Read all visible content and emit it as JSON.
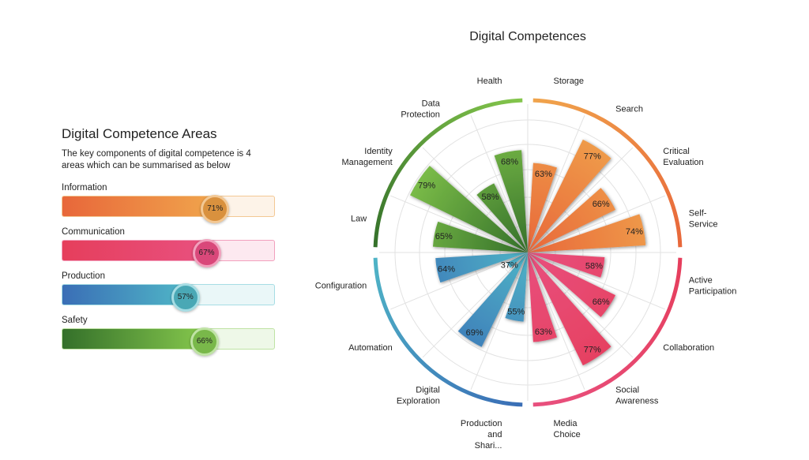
{
  "areas_panel": {
    "title": "Digital Competence Areas",
    "description": "The key components of digital competence is 4 areas which can be summarised as below",
    "areas": [
      {
        "label": "Information",
        "value": 71,
        "value_label": "71%",
        "from": "#e8673a",
        "to": "#f0a44c",
        "track": "#fdf3e8",
        "border": "#f3c894",
        "knob": "#d9913e"
      },
      {
        "label": "Communication",
        "value": 67,
        "value_label": "67%",
        "from": "#e63e5c",
        "to": "#e8507e",
        "track": "#fde9f0",
        "border": "#f2a0bd",
        "knob": "#d9487a"
      },
      {
        "label": "Production",
        "value": 57,
        "value_label": "57%",
        "from": "#3a6eb6",
        "to": "#4fb4c6",
        "track": "#eaf7f8",
        "border": "#a6dde4",
        "knob": "#4aa8b5"
      },
      {
        "label": "Safety",
        "value": 66,
        "value_label": "66%",
        "from": "#34702a",
        "to": "#84c64c",
        "track": "#eef8e8",
        "border": "#bfe3a4",
        "knob": "#79b84a"
      }
    ]
  },
  "chart_data": {
    "type": "polar-bar",
    "title": "Digital Competences",
    "value_suffix": "%",
    "groups": [
      {
        "name": "Information",
        "inner": "#e8673a",
        "outer": "#f0a44c"
      },
      {
        "name": "Communication",
        "inner": "#e8507e",
        "outer": "#e63e5c"
      },
      {
        "name": "Production",
        "inner": "#4fb4c6",
        "outer": "#3a6eb6"
      },
      {
        "name": "Safety",
        "inner": "#34702a",
        "outer": "#84c64c"
      }
    ],
    "categories": [
      {
        "label": "Storage",
        "value": 63,
        "group": 0
      },
      {
        "label": "Search",
        "value": 77,
        "group": 0
      },
      {
        "label": "Critical Evaluation",
        "value": 66,
        "group": 0
      },
      {
        "label": "Self-Service",
        "value": 74,
        "group": 0
      },
      {
        "label": "Active Participation",
        "value": 58,
        "group": 1
      },
      {
        "label": "Collaboration",
        "value": 66,
        "group": 1
      },
      {
        "label": "Social Awareness",
        "value": 77,
        "group": 1
      },
      {
        "label": "Media Choice",
        "value": 63,
        "group": 1
      },
      {
        "label": "Production and Shari...",
        "value": 55,
        "group": 2
      },
      {
        "label": "Digital Exploration",
        "value": 69,
        "group": 2
      },
      {
        "label": "Automation",
        "value": 37,
        "group": 2
      },
      {
        "label": "Configuration",
        "value": 64,
        "group": 2
      },
      {
        "label": "Law",
        "value": 65,
        "group": 3
      },
      {
        "label": "Identity Management",
        "value": 79,
        "group": 3
      },
      {
        "label": "Data Protection",
        "value": 58,
        "group": 3
      },
      {
        "label": "Health",
        "value": 68,
        "group": 3
      }
    ]
  }
}
